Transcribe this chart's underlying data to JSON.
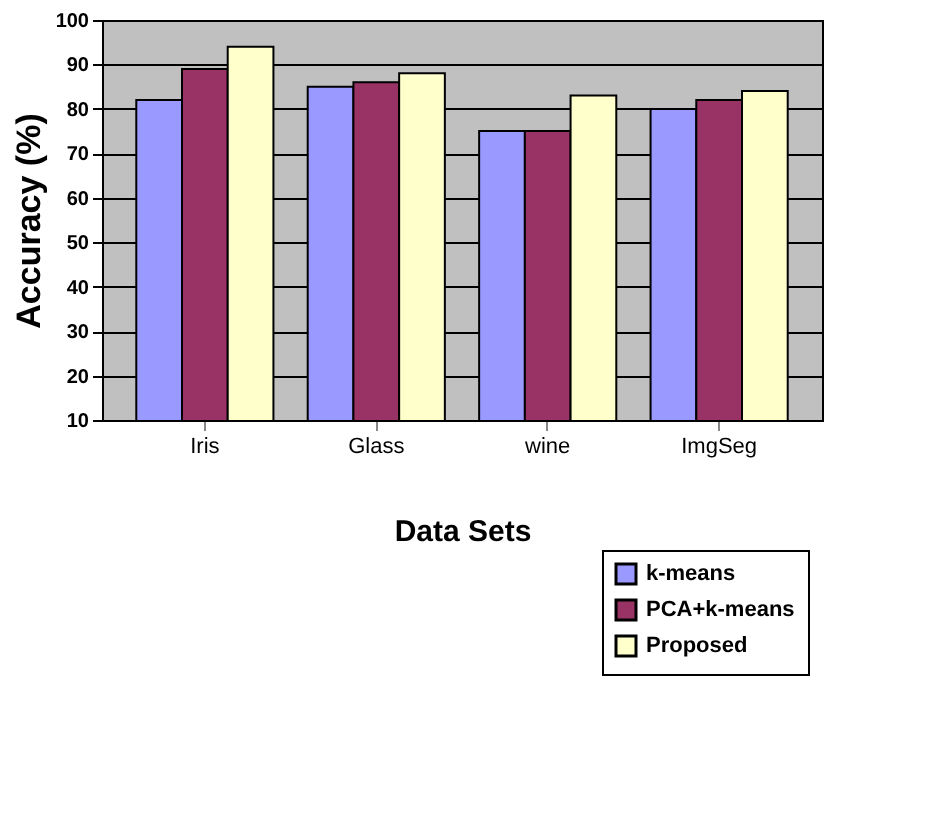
{
  "chart_data": {
    "type": "bar",
    "xlabel": "Data Sets",
    "ylabel": "Accuracy (%)",
    "categories": [
      "Iris",
      "Glass",
      "wine",
      "ImgSeg"
    ],
    "series": [
      {
        "name": "k-means",
        "color": "#9999ff",
        "values": [
          82,
          85,
          75,
          80
        ]
      },
      {
        "name": "PCA+k-means",
        "color": "#993366",
        "values": [
          89,
          86,
          75,
          82
        ]
      },
      {
        "name": "Proposed",
        "color": "#ffffcc",
        "values": [
          94,
          88,
          83,
          84
        ]
      }
    ],
    "ylim": [
      10,
      100
    ],
    "yticks": [
      10,
      20,
      30,
      40,
      50,
      60,
      70,
      80,
      90,
      100
    ],
    "grid": "y",
    "legend": "bottom right"
  }
}
